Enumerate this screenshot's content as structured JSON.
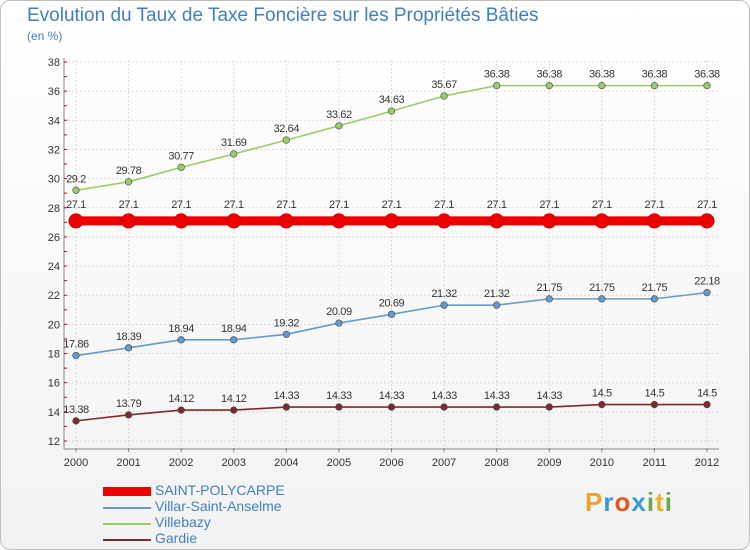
{
  "title": "Evolution du Taux de Taxe Foncière sur les Propriétés Bâties",
  "unit_label": "(en %)",
  "logo": {
    "text": "Proxiti",
    "letters": [
      "P",
      "r",
      "o",
      "x",
      "i",
      "t",
      "i"
    ],
    "colors": [
      "#f0a030",
      "#3a9ad9",
      "#e2561f",
      "#3a9ad9",
      "#6aa84f",
      "#e6b422",
      "#6aa84f"
    ]
  },
  "chart_data": {
    "type": "line",
    "title": "Evolution du Taux de Taxe Foncière sur les Propriétés Bâties",
    "ylabel": "(en %)",
    "xlabel": "",
    "x": [
      "2000",
      "2001",
      "2002",
      "2003",
      "2004",
      "2005",
      "2006",
      "2007",
      "2008",
      "2009",
      "2010",
      "2011",
      "2012"
    ],
    "ylim": [
      12,
      38
    ],
    "yticks": [
      12,
      14,
      16,
      18,
      20,
      22,
      24,
      26,
      28,
      30,
      32,
      34,
      36,
      38
    ],
    "grid": true,
    "legend_position": "bottom-left",
    "series": [
      {
        "name": "SAINT-POLYCARPE",
        "color": "#ee0000",
        "values": [
          27.1,
          27.1,
          27.1,
          27.1,
          27.1,
          27.1,
          27.1,
          27.1,
          27.1,
          27.1,
          27.1,
          27.1,
          27.1
        ],
        "labels": [
          "27.1",
          "27.1",
          "27.1",
          "27.1",
          "27.1",
          "27.1",
          "27.1",
          "27.1",
          "27.1",
          "27.1",
          "27.1",
          "27.1",
          "27.1"
        ],
        "emphasis": true
      },
      {
        "name": "Villar-Saint-Anselme",
        "color": "#6699cc",
        "values": [
          17.86,
          18.39,
          18.94,
          18.94,
          19.32,
          20.09,
          20.69,
          21.32,
          21.32,
          21.75,
          21.75,
          21.75,
          22.18
        ],
        "labels": [
          "17.86",
          "18.39",
          "18.94",
          "18.94",
          "19.32",
          "20.09",
          "20.69",
          "21.32",
          "21.32",
          "21.75",
          "21.75",
          "21.75",
          "22.18"
        ]
      },
      {
        "name": "Villebazy",
        "color": "#99cc66",
        "values": [
          29.2,
          29.78,
          30.77,
          31.69,
          32.64,
          33.62,
          34.63,
          35.67,
          36.38,
          36.38,
          36.38,
          36.38,
          36.38
        ],
        "labels": [
          "29.2",
          "29.78",
          "30.77",
          "31.69",
          "32.64",
          "33.62",
          "34.63",
          "35.67",
          "36.38",
          "36.38",
          "36.38",
          "36.38",
          "36.38"
        ]
      },
      {
        "name": "Gardie",
        "color": "#7f2a2a",
        "values": [
          13.38,
          13.79,
          14.12,
          14.12,
          14.33,
          14.33,
          14.33,
          14.33,
          14.33,
          14.33,
          14.5,
          14.5,
          14.5
        ],
        "labels": [
          "13.38",
          "13.79",
          "14.12",
          "14.12",
          "14.33",
          "14.33",
          "14.33",
          "14.33",
          "14.33",
          "14.33",
          "14.5",
          "14.5",
          "14.5"
        ]
      }
    ]
  }
}
